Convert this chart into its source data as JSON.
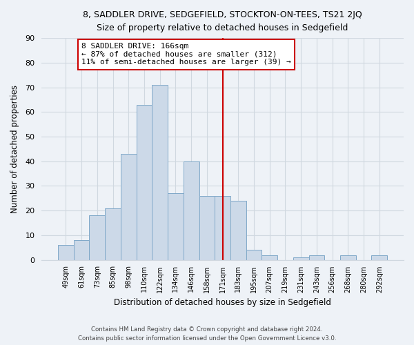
{
  "title": "8, SADDLER DRIVE, SEDGEFIELD, STOCKTON-ON-TEES, TS21 2JQ",
  "subtitle": "Size of property relative to detached houses in Sedgefield",
  "xlabel": "Distribution of detached houses by size in Sedgefield",
  "ylabel": "Number of detached properties",
  "bar_labels": [
    "49sqm",
    "61sqm",
    "73sqm",
    "85sqm",
    "98sqm",
    "110sqm",
    "122sqm",
    "134sqm",
    "146sqm",
    "158sqm",
    "171sqm",
    "183sqm",
    "195sqm",
    "207sqm",
    "219sqm",
    "231sqm",
    "243sqm",
    "256sqm",
    "268sqm",
    "280sqm",
    "292sqm"
  ],
  "bar_heights": [
    6,
    8,
    18,
    21,
    43,
    63,
    71,
    27,
    40,
    26,
    26,
    24,
    4,
    2,
    0,
    1,
    2,
    0,
    2,
    0,
    2
  ],
  "bar_color": "#ccd9e8",
  "bar_edge_color": "#7fa8c8",
  "vline_index": 10,
  "vline_color": "#cc0000",
  "annotation_title": "8 SADDLER DRIVE: 166sqm",
  "annotation_line1": "← 87% of detached houses are smaller (312)",
  "annotation_line2": "11% of semi-detached houses are larger (39) →",
  "annotation_box_color": "#ffffff",
  "annotation_box_edge": "#cc0000",
  "footer_line1": "Contains HM Land Registry data © Crown copyright and database right 2024.",
  "footer_line2": "Contains public sector information licensed under the Open Government Licence v3.0.",
  "ylim": [
    0,
    90
  ],
  "yticks": [
    0,
    10,
    20,
    30,
    40,
    50,
    60,
    70,
    80,
    90
  ],
  "grid_color": "#d0d8e0",
  "background_color": "#eef2f7"
}
